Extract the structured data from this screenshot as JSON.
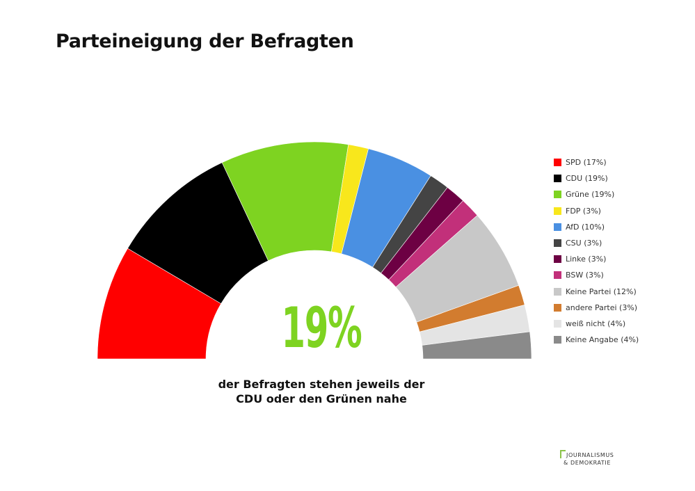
{
  "title": "Parteineigung der Befragten",
  "highlight": {
    "value": "19%",
    "caption": "der Befragten stehen jeweils der CDU oder den Grünen nahe"
  },
  "logo": {
    "line1": "JOURNALISMUS",
    "line2": "& DEMOKRATIE",
    "accent_color": "#8bc34a"
  },
  "chart_data": {
    "type": "pie",
    "variant": "semicircle-donut",
    "title": "Parteineigung der Befragten",
    "unit": "%",
    "legend_position": "right",
    "series": [
      {
        "name": "SPD",
        "label": "SPD (17%)",
        "value": 17,
        "color": "#ff0000"
      },
      {
        "name": "CDU",
        "label": "CDU (19%)",
        "value": 19,
        "color": "#000000"
      },
      {
        "name": "Grüne",
        "label": "Grüne (19%)",
        "value": 19,
        "color": "#7ed321"
      },
      {
        "name": "FDP",
        "label": "FDP (3%)",
        "value": 3,
        "color": "#f8e71c"
      },
      {
        "name": "AfD",
        "label": "AfD (10%)",
        "value": 10,
        "color": "#4a90e2"
      },
      {
        "name": "CSU",
        "label": "CSU (3%)",
        "value": 3,
        "color": "#444444"
      },
      {
        "name": "Linke",
        "label": "Linke (3%)",
        "value": 3,
        "color": "#6d0043"
      },
      {
        "name": "BSW",
        "label": "BSW (3%)",
        "value": 3,
        "color": "#c2307a"
      },
      {
        "name": "Keine Partei",
        "label": "Keine Partei (12%)",
        "value": 12,
        "color": "#c8c8c8"
      },
      {
        "name": "andere Partei",
        "label": "andere Partei (3%)",
        "value": 3,
        "color": "#d27c2f"
      },
      {
        "name": "weiß nicht",
        "label": "weiß nicht (4%)",
        "value": 4,
        "color": "#e4e4e4"
      },
      {
        "name": "Keine Angabe",
        "label": "Keine Angabe (4%)",
        "value": 4,
        "color": "#8a8a8a"
      }
    ]
  }
}
